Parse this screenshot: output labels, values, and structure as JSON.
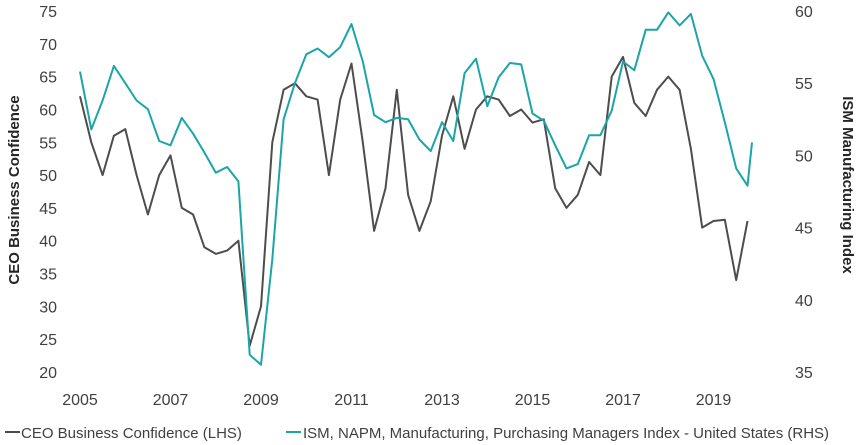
{
  "chart_data": {
    "type": "line",
    "xlim": [
      2005,
      2019.85
    ],
    "x_ticks": [
      "2005",
      "2007",
      "2009",
      "2011",
      "2013",
      "2015",
      "2017",
      "2019"
    ],
    "y_left": {
      "label": "CEO Business Confidence",
      "ylim": [
        20,
        75
      ],
      "ticks": [
        "20",
        "25",
        "30",
        "35",
        "40",
        "45",
        "50",
        "55",
        "60",
        "65",
        "70",
        "75"
      ]
    },
    "y_right": {
      "label": "ISM Manufacturing Index",
      "ylim": [
        35,
        60
      ],
      "ticks": [
        "35",
        "40",
        "45",
        "50",
        "55",
        "60"
      ]
    },
    "grid": false,
    "legend_position": "bottom",
    "series": [
      {
        "name": "CEO Business Confidence (LHS)",
        "axis": "left",
        "color": "#4d4d4d",
        "x": [
          2005,
          2005.25,
          2005.5,
          2005.75,
          2006,
          2006.25,
          2006.5,
          2006.75,
          2007,
          2007.25,
          2007.5,
          2007.75,
          2008,
          2008.25,
          2008.5,
          2008.75,
          2009,
          2009.25,
          2009.5,
          2009.75,
          2010,
          2010.25,
          2010.5,
          2010.75,
          2011,
          2011.25,
          2011.5,
          2011.75,
          2012,
          2012.25,
          2012.5,
          2012.75,
          2013,
          2013.25,
          2013.5,
          2013.75,
          2014,
          2014.25,
          2014.5,
          2014.75,
          2015,
          2015.25,
          2015.5,
          2015.75,
          2016,
          2016.25,
          2016.5,
          2016.75,
          2017,
          2017.25,
          2017.5,
          2017.75,
          2018,
          2018.25,
          2018.5,
          2018.75,
          2019,
          2019.25,
          2019.5,
          2019.75
        ],
        "values": [
          62,
          55,
          50,
          56,
          57,
          50,
          44,
          50,
          53,
          45,
          44,
          39,
          38,
          38.5,
          40,
          24,
          30,
          55,
          63,
          64,
          62,
          61.5,
          50,
          61.5,
          67,
          55,
          41.5,
          48,
          63,
          47,
          41.5,
          46,
          56,
          62,
          54,
          60,
          62,
          61.5,
          59,
          60,
          58,
          58.5,
          48,
          45,
          47,
          52,
          50,
          65,
          68,
          61,
          59,
          63,
          65,
          63,
          54,
          42,
          43,
          43.2,
          34,
          43
        ]
      },
      {
        "name": "ISM, NAPM, Manufacturing, Purchasing Managers Index - United States (RHS)",
        "axis": "right",
        "color": "#1ba5a7",
        "x": [
          2005,
          2005.25,
          2005.5,
          2005.75,
          2006,
          2006.25,
          2006.5,
          2006.75,
          2007,
          2007.25,
          2007.5,
          2007.75,
          2008,
          2008.25,
          2008.5,
          2008.75,
          2009,
          2009.25,
          2009.5,
          2009.75,
          2010,
          2010.25,
          2010.5,
          2010.75,
          2011,
          2011.25,
          2011.5,
          2011.75,
          2012,
          2012.25,
          2012.5,
          2012.75,
          2013,
          2013.25,
          2013.5,
          2013.75,
          2014,
          2014.25,
          2014.5,
          2014.75,
          2015,
          2015.25,
          2015.5,
          2015.75,
          2016,
          2016.25,
          2016.5,
          2016.75,
          2017,
          2017.25,
          2017.5,
          2017.75,
          2018,
          2018.25,
          2018.5,
          2018.75,
          2019,
          2019.25,
          2019.5,
          2019.75,
          2019.85
        ],
        "values": [
          55.8,
          51.8,
          53.8,
          56.2,
          55,
          53.8,
          53.2,
          51,
          50.7,
          52.6,
          51.5,
          50.2,
          48.8,
          49.2,
          48.2,
          36.2,
          35.5,
          42.8,
          52.5,
          55,
          57,
          57.4,
          56.8,
          57.5,
          59.1,
          56.5,
          52.8,
          52.3,
          52.6,
          52.5,
          51.1,
          50.3,
          52.3,
          51,
          55.7,
          56.7,
          53.4,
          55.4,
          56.4,
          56.3,
          52.9,
          52.4,
          50.7,
          49.1,
          49.4,
          51.4,
          51.4,
          53.1,
          56.5,
          55.9,
          58.7,
          58.7,
          59.9,
          59,
          59.8,
          56.9,
          55.3,
          52.3,
          49.1,
          47.9,
          50.9
        ]
      }
    ]
  }
}
